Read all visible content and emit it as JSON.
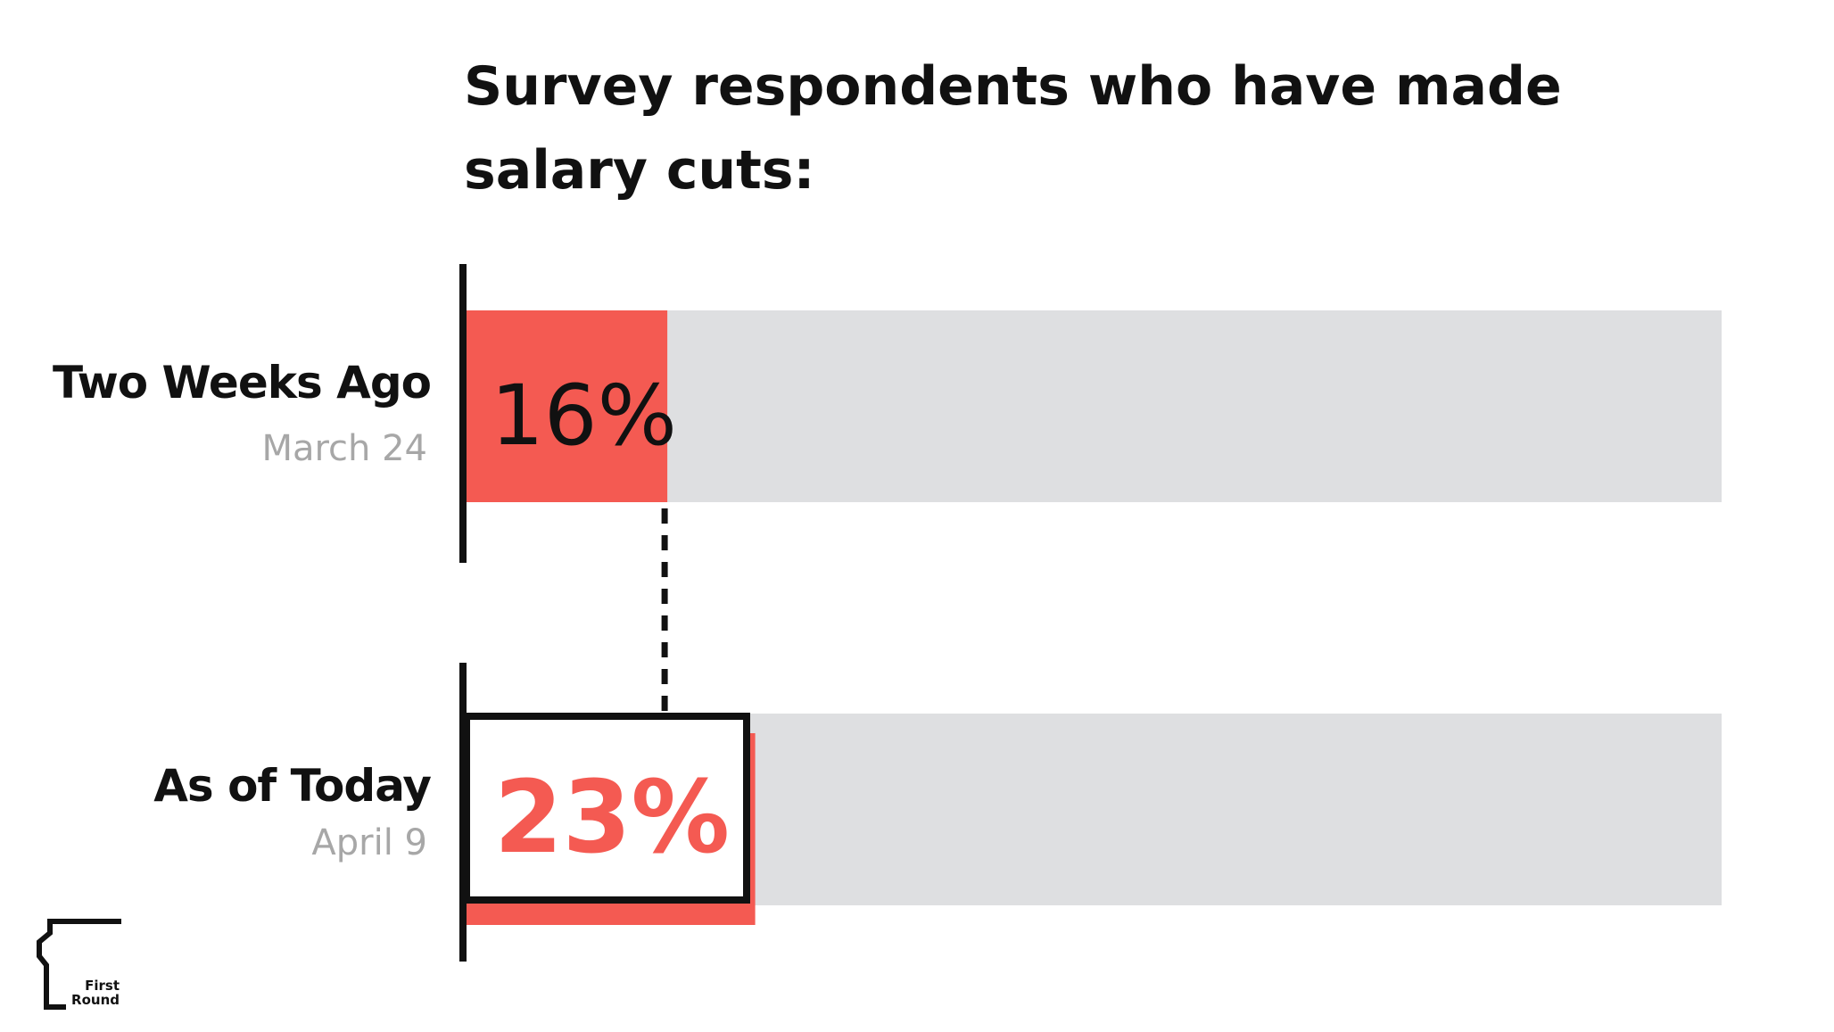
{
  "chart_data": {
    "type": "bar",
    "orientation": "horizontal",
    "title": "Survey respondents who have made salary cuts:",
    "categories": [
      "Two Weeks Ago",
      "As of Today"
    ],
    "dates": [
      "March 24",
      "April 9"
    ],
    "values": [
      16,
      23
    ],
    "value_labels": [
      "16%",
      "23%"
    ],
    "xlim": [
      0,
      100
    ],
    "unit": "%",
    "grid": false,
    "colors": {
      "fill": "#f45a52",
      "track": "#dedfe1",
      "text": "#111111",
      "date": "#a7a7a7"
    }
  },
  "brand": {
    "logo_name": "first-round-logo",
    "logo_text": [
      "First",
      "Round"
    ]
  }
}
